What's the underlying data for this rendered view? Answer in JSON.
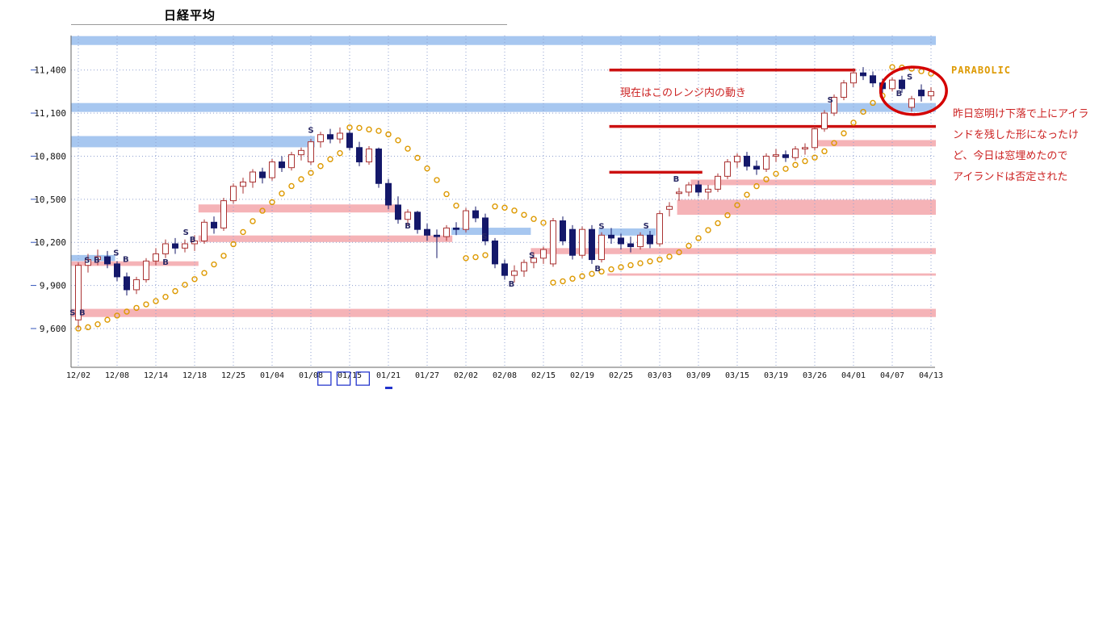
{
  "title": "日経平均",
  "annotations": {
    "parabolic_label": "PARABOLIC",
    "range_note": "現在はこのレンジ内の動き",
    "side_note_lines": [
      "昨日窓明け下落で上にアイラ",
      "ンドを残した形になったけ",
      "ど、今日は窓埋めたので",
      "アイランドは否定された"
    ]
  },
  "footer": {
    "glyphs": "□□□"
  },
  "chart_data": {
    "type": "candlestick",
    "title": "日経平均",
    "ylim": [
      9330,
      11640
    ],
    "y_ticks": [
      11400,
      11100,
      10800,
      10500,
      10200,
      9900,
      9600
    ],
    "y_tick_labels": [
      "11,400",
      "11,100",
      "10,800",
      "10,500",
      "10,200",
      "9,900",
      "9,600"
    ],
    "x_tick_labels": [
      "12/02",
      "12/08",
      "12/14",
      "12/18",
      "12/25",
      "01/04",
      "01/08",
      "01/15",
      "01/21",
      "01/27",
      "02/02",
      "02/08",
      "02/15",
      "02/19",
      "02/25",
      "03/03",
      "03/09",
      "03/15",
      "03/19",
      "03/26",
      "04/01",
      "04/07",
      "04/13"
    ],
    "x_tick_every": 4,
    "grid": "dotted",
    "candles": [
      [
        9660,
        10060,
        9600,
        10040
      ],
      [
        10040,
        10120,
        9990,
        10080
      ],
      [
        10080,
        10150,
        10040,
        10100
      ],
      [
        10100,
        10140,
        10020,
        10050
      ],
      [
        10050,
        10070,
        9930,
        9960
      ],
      [
        9960,
        9990,
        9830,
        9870
      ],
      [
        9870,
        9960,
        9840,
        9940
      ],
      [
        9940,
        10090,
        9920,
        10070
      ],
      [
        10070,
        10160,
        10040,
        10120
      ],
      [
        10120,
        10220,
        10090,
        10190
      ],
      [
        10190,
        10230,
        10120,
        10160
      ],
      [
        10160,
        10220,
        10130,
        10190
      ],
      [
        10190,
        10250,
        10140,
        10210
      ],
      [
        10210,
        10360,
        10190,
        10340
      ],
      [
        10340,
        10380,
        10260,
        10300
      ],
      [
        10300,
        10510,
        10280,
        10490
      ],
      [
        10490,
        10610,
        10470,
        10590
      ],
      [
        10590,
        10650,
        10540,
        10620
      ],
      [
        10620,
        10710,
        10580,
        10690
      ],
      [
        10690,
        10720,
        10610,
        10650
      ],
      [
        10650,
        10780,
        10630,
        10760
      ],
      [
        10760,
        10800,
        10690,
        10720
      ],
      [
        10720,
        10830,
        10700,
        10810
      ],
      [
        10810,
        10860,
        10770,
        10840
      ],
      [
        10760,
        10920,
        10740,
        10900
      ],
      [
        10900,
        10970,
        10860,
        10950
      ],
      [
        10950,
        10990,
        10890,
        10920
      ],
      [
        10920,
        11000,
        10890,
        10960
      ],
      [
        10960,
        10980,
        10840,
        10860
      ],
      [
        10860,
        10900,
        10730,
        10760
      ],
      [
        10760,
        10870,
        10740,
        10850
      ],
      [
        10850,
        10860,
        10580,
        10610
      ],
      [
        10610,
        10640,
        10430,
        10460
      ],
      [
        10460,
        10520,
        10330,
        10360
      ],
      [
        10360,
        10430,
        10320,
        10410
      ],
      [
        10410,
        10420,
        10260,
        10290
      ],
      [
        10290,
        10330,
        10210,
        10250
      ],
      [
        10250,
        10290,
        10090,
        10240
      ],
      [
        10240,
        10320,
        10210,
        10300
      ],
      [
        10300,
        10340,
        10250,
        10290
      ],
      [
        10290,
        10440,
        10270,
        10420
      ],
      [
        10420,
        10450,
        10340,
        10370
      ],
      [
        10370,
        10400,
        10180,
        10210
      ],
      [
        10210,
        10230,
        10020,
        10050
      ],
      [
        10050,
        10080,
        9940,
        9970
      ],
      [
        9970,
        10040,
        9920,
        10000
      ],
      [
        10000,
        10080,
        9960,
        10060
      ],
      [
        10060,
        10130,
        10020,
        10090
      ],
      [
        10090,
        10170,
        10050,
        10150
      ],
      [
        10050,
        10370,
        10030,
        10350
      ],
      [
        10350,
        10380,
        10180,
        10210
      ],
      [
        10290,
        10320,
        10080,
        10110
      ],
      [
        10110,
        10310,
        10090,
        10290
      ],
      [
        10290,
        10320,
        10050,
        10080
      ],
      [
        10080,
        10270,
        10060,
        10250
      ],
      [
        10250,
        10300,
        10190,
        10230
      ],
      [
        10230,
        10260,
        10150,
        10190
      ],
      [
        10190,
        10240,
        10130,
        10170
      ],
      [
        10170,
        10270,
        10150,
        10250
      ],
      [
        10250,
        10280,
        10160,
        10190
      ],
      [
        10190,
        10420,
        10170,
        10400
      ],
      [
        10430,
        10480,
        10380,
        10450
      ],
      [
        10540,
        10580,
        10490,
        10550
      ],
      [
        10550,
        10620,
        10520,
        10600
      ],
      [
        10600,
        10630,
        10520,
        10550
      ],
      [
        10550,
        10600,
        10500,
        10570
      ],
      [
        10570,
        10680,
        10550,
        10660
      ],
      [
        10660,
        10780,
        10640,
        10760
      ],
      [
        10760,
        10820,
        10720,
        10800
      ],
      [
        10800,
        10830,
        10700,
        10730
      ],
      [
        10730,
        10770,
        10670,
        10710
      ],
      [
        10710,
        10820,
        10690,
        10800
      ],
      [
        10800,
        10850,
        10760,
        10810
      ],
      [
        10810,
        10840,
        10760,
        10790
      ],
      [
        10790,
        10870,
        10770,
        10850
      ],
      [
        10850,
        10890,
        10810,
        10860
      ],
      [
        10860,
        11010,
        10840,
        10990
      ],
      [
        10990,
        11120,
        10970,
        11100
      ],
      [
        11100,
        11230,
        11080,
        11210
      ],
      [
        11210,
        11330,
        11190,
        11310
      ],
      [
        11310,
        11410,
        11280,
        11380
      ],
      [
        11380,
        11420,
        11330,
        11360
      ],
      [
        11360,
        11390,
        11280,
        11310
      ],
      [
        11310,
        11340,
        11240,
        11270
      ],
      [
        11270,
        11350,
        11250,
        11330
      ],
      [
        11330,
        11360,
        11240,
        11270
      ],
      [
        11140,
        11220,
        11110,
        11200
      ],
      [
        11260,
        11300,
        11180,
        11220
      ],
      [
        11220,
        11280,
        11190,
        11250
      ]
    ],
    "overlays": {
      "parabolic_sar": {
        "style": "hollow-dots",
        "af": 0.02,
        "af_max": 0.2
      },
      "bands": [
        {
          "color": "blue",
          "top": 11636,
          "bottom": 11574,
          "from": -0.8,
          "to": 88.5
        },
        {
          "color": "blue",
          "top": 11170,
          "bottom": 11108,
          "from": -0.8,
          "to": 88.5
        },
        {
          "color": "blue",
          "top": 10940,
          "bottom": 10862,
          "from": -0.8,
          "to": 24.4
        },
        {
          "color": "blue",
          "top": 10302,
          "bottom": 10252,
          "from": 38.5,
          "to": 46.7
        },
        {
          "color": "blue",
          "top": 10297,
          "bottom": 10247,
          "from": 53.7,
          "to": 59.6
        },
        {
          "color": "blue",
          "top": 10112,
          "bottom": 10070,
          "from": -0.8,
          "to": 3.8
        },
        {
          "color": "pink",
          "top": 9737,
          "bottom": 9680,
          "from": -0.8,
          "to": 88.5
        },
        {
          "color": "pink",
          "top": 10248,
          "bottom": 10202,
          "from": 12.4,
          "to": 38.6
        },
        {
          "color": "pink",
          "top": 10464,
          "bottom": 10408,
          "from": 12.4,
          "to": 32.9
        },
        {
          "color": "pink",
          "top": 10497,
          "bottom": 10392,
          "from": 61.8,
          "to": 88.5
        },
        {
          "color": "pink",
          "top": 10637,
          "bottom": 10598,
          "from": 63.2,
          "to": 88.5
        },
        {
          "color": "pink",
          "top": 10160,
          "bottom": 10118,
          "from": 46.7,
          "to": 88.5
        },
        {
          "color": "pink",
          "top": 10912,
          "bottom": 10868,
          "from": 76.1,
          "to": 88.5
        },
        {
          "color": "pink",
          "top": 9984,
          "bottom": 9968,
          "from": 54.6,
          "to": 88.5
        },
        {
          "color": "pink",
          "top": 10068,
          "bottom": 10036,
          "from": -0.8,
          "to": 12.4
        }
      ],
      "red_lines": [
        {
          "price": 11400,
          "from": 54.8,
          "to": 80.2
        },
        {
          "price": 11007,
          "from": 54.8,
          "to": 88.5
        },
        {
          "price": 10688,
          "from": 54.8,
          "to": 64.4
        }
      ],
      "markers": [
        {
          "label": "S",
          "idx": -0.6,
          "price": 9715
        },
        {
          "label": "B",
          "idx": 0.4,
          "price": 9715
        },
        {
          "label": "S",
          "idx": 0.9,
          "price": 10080
        },
        {
          "label": "B",
          "idx": 1.9,
          "price": 10080
        },
        {
          "label": "S",
          "idx": 3.9,
          "price": 10130
        },
        {
          "label": "B",
          "idx": 4.9,
          "price": 10085
        },
        {
          "label": "B",
          "idx": 9.0,
          "price": 10065
        },
        {
          "label": "S",
          "idx": 11.1,
          "price": 10275
        },
        {
          "label": "B",
          "idx": 11.8,
          "price": 10225
        },
        {
          "label": "S",
          "idx": 24.0,
          "price": 10985
        },
        {
          "label": "B",
          "idx": 34.0,
          "price": 10320
        },
        {
          "label": "S",
          "idx": 41.9,
          "price": 10245
        },
        {
          "label": "B",
          "idx": 44.7,
          "price": 9915
        },
        {
          "label": "S",
          "idx": 46.8,
          "price": 10115
        },
        {
          "label": "B",
          "idx": 53.6,
          "price": 10020
        },
        {
          "label": "S",
          "idx": 54.0,
          "price": 10315
        },
        {
          "label": "S",
          "idx": 58.6,
          "price": 10320
        },
        {
          "label": "B",
          "idx": 61.7,
          "price": 10645
        },
        {
          "label": "S",
          "idx": 77.6,
          "price": 11195
        },
        {
          "label": "B",
          "idx": 84.7,
          "price": 11240
        },
        {
          "label": "S",
          "idx": 85.8,
          "price": 11355
        }
      ],
      "highlight_ellipse": {
        "center_idx": 86.2,
        "center_price": 11255,
        "rx_candles": 3.4,
        "ry_price": 165
      }
    },
    "colors": {
      "up_fill": "#ffffff",
      "up_stroke": "#aa3333",
      "down": "#14186a",
      "sar": "#dd9900",
      "band_blue": "#a7c7f0",
      "band_pink": "#f5b3b7",
      "red_line": "#cc1111",
      "grid": "#8fa0d0",
      "annotation_red": "#cc2222",
      "parabolic_orange": "#dd9900",
      "marker": "#2a2a66",
      "footer_blue": "#2233cc"
    }
  }
}
